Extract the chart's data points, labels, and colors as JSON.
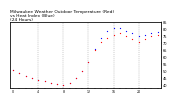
{
  "background_color": "#ffffff",
  "ylim": [
    38,
    85
  ],
  "yticks_right": [
    40,
    45,
    50,
    55,
    60,
    65,
    70,
    75,
    80,
    85
  ],
  "ytick_fontsize": 2.5,
  "xtick_fontsize": 2.3,
  "grid_color": "#999999",
  "hours": [
    0,
    1,
    2,
    3,
    4,
    5,
    6,
    7,
    8,
    9,
    10,
    11,
    12,
    13,
    14,
    15,
    16,
    17,
    18,
    19,
    20,
    21,
    22,
    23
  ],
  "temp_red": [
    51,
    49,
    47,
    45,
    44,
    43,
    42,
    41,
    40,
    42,
    45,
    50,
    57,
    65,
    71,
    74,
    76,
    77,
    75,
    73,
    71,
    73,
    75,
    76
  ],
  "heat_blue": [
    51,
    49,
    47,
    45,
    44,
    43,
    42,
    41,
    40,
    42,
    45,
    50,
    57,
    66,
    74,
    79,
    81,
    81,
    79,
    77,
    75,
    76,
    77,
    78
  ],
  "red_color": "#ff0000",
  "blue_color": "#0000ff",
  "marker_size": 1.8,
  "vgrid_positions": [
    4,
    8,
    12,
    16,
    20
  ],
  "xtick_labels": [
    "0",
    "",
    "",
    "",
    "4",
    "",
    "",
    "",
    "8",
    "",
    "",
    "",
    "12",
    "",
    "",
    "",
    "16",
    "",
    "",
    "",
    "20",
    "",
    "",
    ""
  ],
  "title_text": "Milwaukee Weather Outdoor Temperature (Red)\nvs Heat Index (Blue)\n(24 Hours)",
  "title_fontsize": 3.2
}
